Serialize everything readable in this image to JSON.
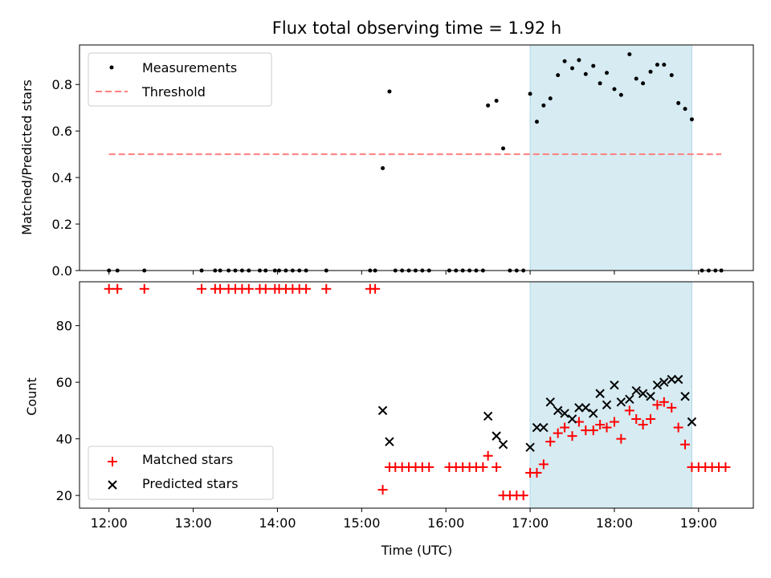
{
  "chart_data": {
    "type": "scatter",
    "title": "Flux total observing time = 1.92 h",
    "xlabel": "Time (UTC)",
    "x_unit": "hours since 12:00 UTC",
    "xlim": [
      -0.35,
      7.65
    ],
    "x_ticks": [
      {
        "value": 0,
        "label": "12:00"
      },
      {
        "value": 1,
        "label": "13:00"
      },
      {
        "value": 2,
        "label": "14:00"
      },
      {
        "value": 3,
        "label": "15:00"
      },
      {
        "value": 4,
        "label": "16:00"
      },
      {
        "value": 5,
        "label": "17:00"
      },
      {
        "value": 6,
        "label": "18:00"
      },
      {
        "value": 7,
        "label": "19:00"
      }
    ],
    "observing_window": {
      "start": 5.0,
      "end": 6.92,
      "color": "#add8e6"
    },
    "panels": [
      {
        "id": "ratio",
        "ylabel": "Matched/Predicted stars",
        "ylim": [
          0.0,
          0.97
        ],
        "y_ticks": [
          0.0,
          0.2,
          0.4,
          0.6,
          0.8
        ],
        "y_tick_labels": [
          "0.0",
          "0.2",
          "0.4",
          "0.6",
          "0.8"
        ],
        "legend": [
          "Measurements",
          "Threshold"
        ],
        "threshold": {
          "y": 0.5,
          "x_range": [
            0.0,
            7.27
          ],
          "color": "#ff7f7f"
        },
        "series": [
          {
            "name": "Measurements",
            "marker": "dot",
            "color": "#000000",
            "points": [
              [
                0.0,
                0
              ],
              [
                0.1,
                0
              ],
              [
                0.42,
                0
              ],
              [
                1.1,
                0
              ],
              [
                1.26,
                0
              ],
              [
                1.32,
                0
              ],
              [
                1.42,
                0
              ],
              [
                1.5,
                0
              ],
              [
                1.58,
                0
              ],
              [
                1.66,
                0
              ],
              [
                1.79,
                0
              ],
              [
                1.86,
                0
              ],
              [
                1.97,
                0
              ],
              [
                2.02,
                0
              ],
              [
                2.1,
                0
              ],
              [
                2.18,
                0
              ],
              [
                2.26,
                0
              ],
              [
                2.34,
                0
              ],
              [
                2.58,
                0
              ],
              [
                3.1,
                0
              ],
              [
                3.16,
                0
              ],
              [
                3.4,
                0
              ],
              [
                3.48,
                0
              ],
              [
                3.56,
                0
              ],
              [
                3.64,
                0
              ],
              [
                3.72,
                0
              ],
              [
                3.8,
                0
              ],
              [
                4.04,
                0
              ],
              [
                4.12,
                0
              ],
              [
                4.2,
                0
              ],
              [
                4.28,
                0
              ],
              [
                4.36,
                0
              ],
              [
                4.44,
                0
              ],
              [
                4.76,
                0
              ],
              [
                4.84,
                0
              ],
              [
                4.92,
                0
              ],
              [
                7.04,
                0
              ],
              [
                7.12,
                0
              ],
              [
                7.2,
                0
              ],
              [
                7.27,
                0
              ],
              [
                3.25,
                0.44
              ],
              [
                3.33,
                0.77
              ],
              [
                4.5,
                0.71
              ],
              [
                4.6,
                0.73
              ],
              [
                4.68,
                0.525
              ],
              [
                5.0,
                0.76
              ],
              [
                5.08,
                0.64
              ],
              [
                5.16,
                0.71
              ],
              [
                5.24,
                0.74
              ],
              [
                5.33,
                0.84
              ],
              [
                5.41,
                0.9
              ],
              [
                5.5,
                0.87
              ],
              [
                5.58,
                0.905
              ],
              [
                5.66,
                0.845
              ],
              [
                5.75,
                0.88
              ],
              [
                5.83,
                0.805
              ],
              [
                5.91,
                0.85
              ],
              [
                6.0,
                0.78
              ],
              [
                6.08,
                0.755
              ],
              [
                6.18,
                0.93
              ],
              [
                6.26,
                0.825
              ],
              [
                6.34,
                0.805
              ],
              [
                6.43,
                0.855
              ],
              [
                6.51,
                0.885
              ],
              [
                6.59,
                0.885
              ],
              [
                6.68,
                0.84
              ],
              [
                6.76,
                0.72
              ],
              [
                6.84,
                0.695
              ],
              [
                6.92,
                0.65
              ]
            ]
          }
        ]
      },
      {
        "id": "counts",
        "ylabel": "Count",
        "ylim": [
          15.5,
          95.5
        ],
        "y_ticks": [
          20,
          40,
          60,
          80
        ],
        "y_tick_labels": [
          "20",
          "40",
          "60",
          "80"
        ],
        "legend": [
          "Matched stars",
          "Predicted stars"
        ],
        "series": [
          {
            "name": "Matched stars",
            "marker": "plus",
            "color": "#ff0000",
            "points": [
              [
                0.0,
                93
              ],
              [
                0.1,
                93
              ],
              [
                0.42,
                93
              ],
              [
                1.1,
                93
              ],
              [
                1.26,
                93
              ],
              [
                1.32,
                93
              ],
              [
                1.42,
                93
              ],
              [
                1.5,
                93
              ],
              [
                1.58,
                93
              ],
              [
                1.66,
                93
              ],
              [
                1.79,
                93
              ],
              [
                1.86,
                93
              ],
              [
                1.97,
                93
              ],
              [
                2.02,
                93
              ],
              [
                2.1,
                93
              ],
              [
                2.18,
                93
              ],
              [
                2.26,
                93
              ],
              [
                2.34,
                93
              ],
              [
                2.58,
                93
              ],
              [
                3.1,
                93
              ],
              [
                3.16,
                93
              ],
              [
                3.25,
                22
              ],
              [
                3.33,
                30
              ],
              [
                3.4,
                30
              ],
              [
                3.48,
                30
              ],
              [
                3.56,
                30
              ],
              [
                3.64,
                30
              ],
              [
                3.72,
                30
              ],
              [
                3.8,
                30
              ],
              [
                4.04,
                30
              ],
              [
                4.12,
                30
              ],
              [
                4.2,
                30
              ],
              [
                4.28,
                30
              ],
              [
                4.36,
                30
              ],
              [
                4.44,
                30
              ],
              [
                4.5,
                34
              ],
              [
                4.6,
                30
              ],
              [
                4.68,
                20
              ],
              [
                4.76,
                20
              ],
              [
                4.84,
                20
              ],
              [
                4.92,
                20
              ],
              [
                5.0,
                28
              ],
              [
                5.08,
                28
              ],
              [
                5.16,
                31
              ],
              [
                5.24,
                39
              ],
              [
                5.33,
                42
              ],
              [
                5.41,
                44
              ],
              [
                5.5,
                41
              ],
              [
                5.58,
                46
              ],
              [
                5.66,
                43
              ],
              [
                5.75,
                43
              ],
              [
                5.83,
                45
              ],
              [
                5.91,
                44
              ],
              [
                6.0,
                46
              ],
              [
                6.08,
                40
              ],
              [
                6.18,
                50
              ],
              [
                6.26,
                47
              ],
              [
                6.34,
                45
              ],
              [
                6.43,
                47
              ],
              [
                6.51,
                52
              ],
              [
                6.59,
                53
              ],
              [
                6.68,
                51
              ],
              [
                6.76,
                44
              ],
              [
                6.84,
                38
              ],
              [
                6.92,
                30
              ],
              [
                7.0,
                30
              ],
              [
                7.08,
                30
              ],
              [
                7.16,
                30
              ],
              [
                7.24,
                30
              ],
              [
                7.32,
                30
              ]
            ]
          },
          {
            "name": "Predicted stars",
            "marker": "x",
            "color": "#000000",
            "points": [
              [
                3.25,
                50
              ],
              [
                3.33,
                39
              ],
              [
                4.5,
                48
              ],
              [
                4.6,
                41
              ],
              [
                4.68,
                38
              ],
              [
                5.0,
                37
              ],
              [
                5.08,
                44
              ],
              [
                5.16,
                44
              ],
              [
                5.24,
                53
              ],
              [
                5.33,
                50
              ],
              [
                5.41,
                49
              ],
              [
                5.5,
                47
              ],
              [
                5.58,
                51
              ],
              [
                5.66,
                51
              ],
              [
                5.75,
                49
              ],
              [
                5.83,
                56
              ],
              [
                5.91,
                52
              ],
              [
                6.0,
                59
              ],
              [
                6.08,
                53
              ],
              [
                6.18,
                54
              ],
              [
                6.26,
                57
              ],
              [
                6.34,
                56
              ],
              [
                6.43,
                55
              ],
              [
                6.51,
                59
              ],
              [
                6.59,
                60
              ],
              [
                6.68,
                61
              ],
              [
                6.76,
                61
              ],
              [
                6.84,
                55
              ],
              [
                6.92,
                46
              ]
            ]
          }
        ]
      }
    ]
  }
}
